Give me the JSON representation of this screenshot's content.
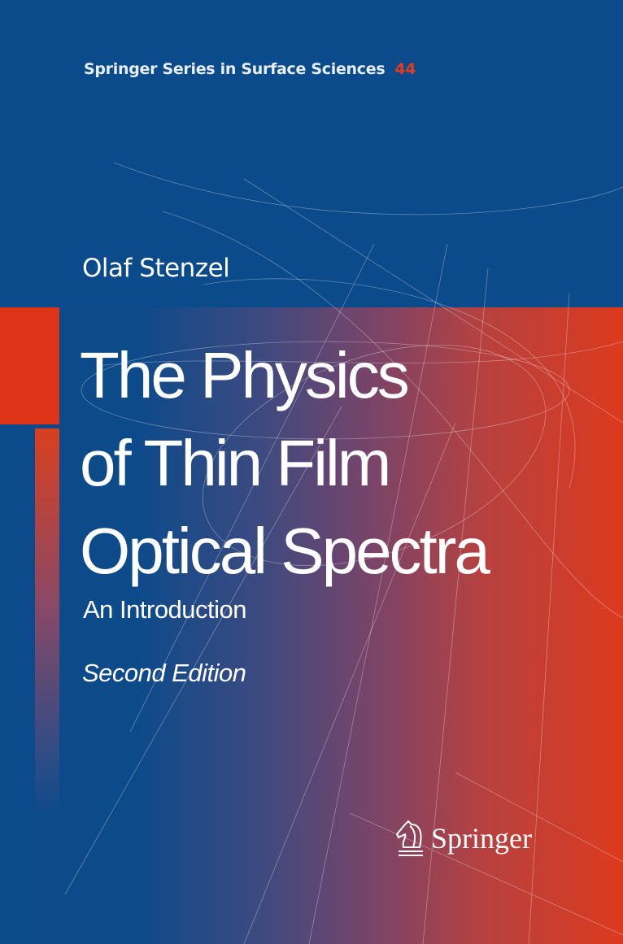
{
  "cover": {
    "series": "Springer Series in Surface Sciences",
    "series_number": "44",
    "author": "Olaf Stenzel",
    "title_lines": [
      "The Physics",
      "of Thin Film",
      "Optical Spectra"
    ],
    "subtitle": "An Introduction",
    "edition": "Second Edition",
    "publisher": "Springer",
    "publisher_icon": "knight-chess-piece-icon",
    "colors": {
      "blue": "#0b4a8b",
      "red": "#dd3418"
    }
  }
}
